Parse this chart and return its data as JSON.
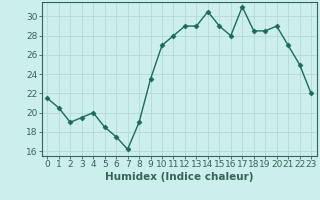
{
  "x": [
    0,
    1,
    2,
    3,
    4,
    5,
    6,
    7,
    8,
    9,
    10,
    11,
    12,
    13,
    14,
    15,
    16,
    17,
    18,
    19,
    20,
    21,
    22,
    23
  ],
  "y": [
    21.5,
    20.5,
    19.0,
    19.5,
    20.0,
    18.5,
    17.5,
    16.2,
    19.0,
    23.5,
    27.0,
    28.0,
    29.0,
    29.0,
    30.5,
    29.0,
    28.0,
    31.0,
    28.5,
    28.5,
    29.0,
    27.0,
    25.0,
    22.0
  ],
  "line_color": "#1a6b5a",
  "marker": "D",
  "markersize": 2.5,
  "linewidth": 1.0,
  "xlabel": "Humidex (Indice chaleur)",
  "ylim": [
    15.5,
    31.5
  ],
  "xlim": [
    -0.5,
    23.5
  ],
  "yticks": [
    16,
    18,
    20,
    22,
    24,
    26,
    28,
    30
  ],
  "xticks": [
    0,
    1,
    2,
    3,
    4,
    5,
    6,
    7,
    8,
    9,
    10,
    11,
    12,
    13,
    14,
    15,
    16,
    17,
    18,
    19,
    20,
    21,
    22,
    23
  ],
  "bg_color": "#cceeed",
  "grid_color": "#b8d8d5",
  "axis_color": "#336655",
  "xlabel_fontsize": 7.5,
  "tick_fontsize": 6.5
}
